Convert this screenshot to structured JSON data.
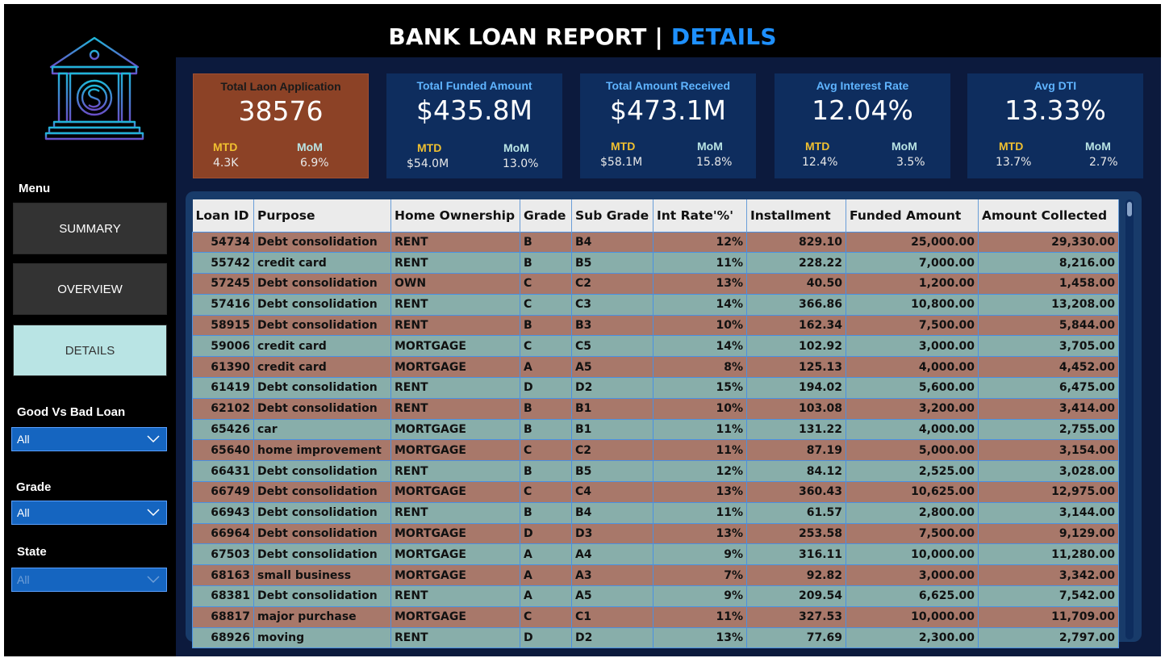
{
  "header": {
    "title_main": "BANK LOAN REPORT | ",
    "title_accent": "DETAILS"
  },
  "logo": {
    "icon": "bank-dollar-icon"
  },
  "sidebar": {
    "menu_label": "Menu",
    "nav": [
      {
        "label": "SUMMARY",
        "active": false
      },
      {
        "label": "OVERVIEW",
        "active": false
      },
      {
        "label": "DETAILS",
        "active": true
      }
    ],
    "filters": [
      {
        "label": "Good Vs Bad Loan",
        "value": "All"
      },
      {
        "label": "Grade",
        "value": "All"
      },
      {
        "label": "State",
        "value": "All"
      }
    ]
  },
  "kpis": [
    {
      "title": "Total Laon Application",
      "value": "38576",
      "mtd_label": "MTD",
      "mtd_value": "4.3K",
      "mom_label": "MoM",
      "mom_value": "6.9%"
    },
    {
      "title": "Total Funded Amount",
      "value": "$435.8M",
      "mtd_label": "MTD",
      "mtd_value": "$54.0M",
      "mom_label": "MoM",
      "mom_value": "13.0%"
    },
    {
      "title": "Total Amount Received",
      "value": "$473.1M",
      "mtd_label": "MTD",
      "mtd_value": "$58.1M",
      "mom_label": "MoM",
      "mom_value": "15.8%"
    },
    {
      "title": "Avg Interest Rate",
      "value": "12.04%",
      "mtd_label": "MTD",
      "mtd_value": "12.4%",
      "mom_label": "MoM",
      "mom_value": "3.5%"
    },
    {
      "title": "Avg DTI",
      "value": "13.33%",
      "mtd_label": "MTD",
      "mtd_value": "13.7%",
      "mom_label": "MoM",
      "mom_value": "2.7%"
    }
  ],
  "table": {
    "columns": [
      "Loan ID",
      "Purpose",
      "Home Ownership",
      "Grade",
      "Sub Grade",
      "Int Rate'%'",
      "Installment",
      "Funded Amount",
      "Amount Collected"
    ],
    "rows": [
      [
        "54734",
        "Debt consolidation",
        "RENT",
        "B",
        "B4",
        "12%",
        "829.10",
        "25,000.00",
        "29,330.00"
      ],
      [
        "55742",
        "credit card",
        "RENT",
        "B",
        "B5",
        "11%",
        "228.22",
        "7,000.00",
        "8,216.00"
      ],
      [
        "57245",
        "Debt consolidation",
        "OWN",
        "C",
        "C2",
        "13%",
        "40.50",
        "1,200.00",
        "1,458.00"
      ],
      [
        "57416",
        "Debt consolidation",
        "RENT",
        "C",
        "C3",
        "14%",
        "366.86",
        "10,800.00",
        "13,208.00"
      ],
      [
        "58915",
        "Debt consolidation",
        "RENT",
        "B",
        "B3",
        "10%",
        "162.34",
        "7,500.00",
        "5,844.00"
      ],
      [
        "59006",
        "credit card",
        "MORTGAGE",
        "C",
        "C5",
        "14%",
        "102.92",
        "3,000.00",
        "3,705.00"
      ],
      [
        "61390",
        "credit card",
        "MORTGAGE",
        "A",
        "A5",
        "8%",
        "125.13",
        "4,000.00",
        "4,452.00"
      ],
      [
        "61419",
        "Debt consolidation",
        "RENT",
        "D",
        "D2",
        "15%",
        "194.02",
        "5,600.00",
        "6,475.00"
      ],
      [
        "62102",
        "Debt consolidation",
        "RENT",
        "B",
        "B1",
        "10%",
        "103.08",
        "3,200.00",
        "3,414.00"
      ],
      [
        "65426",
        "car",
        "MORTGAGE",
        "B",
        "B1",
        "11%",
        "131.22",
        "4,000.00",
        "2,755.00"
      ],
      [
        "65640",
        "home improvement",
        "MORTGAGE",
        "C",
        "C2",
        "11%",
        "87.19",
        "5,000.00",
        "3,154.00"
      ],
      [
        "66431",
        "Debt consolidation",
        "RENT",
        "B",
        "B5",
        "12%",
        "84.12",
        "2,525.00",
        "3,028.00"
      ],
      [
        "66749",
        "Debt consolidation",
        "MORTGAGE",
        "C",
        "C4",
        "13%",
        "360.43",
        "10,625.00",
        "12,975.00"
      ],
      [
        "66943",
        "Debt consolidation",
        "RENT",
        "B",
        "B4",
        "11%",
        "61.57",
        "2,800.00",
        "3,144.00"
      ],
      [
        "66964",
        "Debt consolidation",
        "MORTGAGE",
        "D",
        "D3",
        "13%",
        "253.58",
        "7,500.00",
        "9,129.00"
      ],
      [
        "67503",
        "Debt consolidation",
        "MORTGAGE",
        "A",
        "A4",
        "9%",
        "316.11",
        "10,000.00",
        "11,280.00"
      ],
      [
        "68163",
        "small business",
        "MORTGAGE",
        "A",
        "A3",
        "7%",
        "92.82",
        "3,000.00",
        "3,342.00"
      ],
      [
        "68381",
        "Debt consolidation",
        "RENT",
        "A",
        "A5",
        "9%",
        "209.54",
        "6,625.00",
        "7,542.00"
      ],
      [
        "68817",
        "major purchase",
        "MORTGAGE",
        "C",
        "C1",
        "11%",
        "327.53",
        "10,000.00",
        "11,709.00"
      ],
      [
        "68926",
        "moving",
        "RENT",
        "D",
        "D2",
        "13%",
        "77.69",
        "2,300.00",
        "2,797.00"
      ]
    ]
  },
  "colors": {
    "accent": "#1e90ff",
    "kpi_first_bg": "#8c4226",
    "kpi_bg": "#0e2d5e",
    "row_odd": "#a8786a",
    "row_even": "#88aeaa",
    "active_nav": "#b9e4e4"
  }
}
